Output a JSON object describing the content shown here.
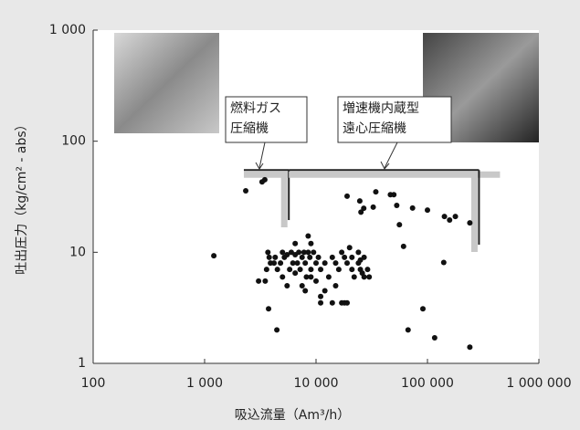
{
  "chart_data": {
    "type": "scatter",
    "xlabel": "吸込流量（Am³/h）",
    "ylabel": "吐出圧力（kg/cm² - abs）",
    "xlog": true,
    "ylog": true,
    "xlim": [
      100,
      1000000
    ],
    "ylim": [
      1,
      1000
    ],
    "xticks": [
      100,
      {
        "value": 1000,
        "label": "1 000"
      },
      {
        "value": 10000,
        "label": "10 000"
      },
      {
        "value": 100000,
        "label": "100 000"
      },
      {
        "value": 1000000,
        "label": "1 000 000"
      }
    ],
    "yticks": [
      1,
      10,
      100,
      {
        "value": 1000,
        "label": "1 000"
      }
    ],
    "color": "#111111",
    "x": [
      2340,
      3280,
      3470,
      1210,
      3050,
      3750,
      4450,
      3700,
      3800,
      3900,
      3600,
      4200,
      4500,
      4800,
      5000,
      5200,
      5500,
      5800,
      6000,
      6200,
      6500,
      6800,
      7000,
      7200,
      7500,
      7800,
      8000,
      8200,
      8500,
      8800,
      9000,
      9500,
      10000,
      10500,
      11000,
      12000,
      13000,
      14000,
      15000,
      16000,
      17000,
      18000,
      19000,
      20000,
      21000,
      22000,
      24000,
      25000,
      26000,
      27000,
      29000,
      30000,
      5000,
      5500,
      6500,
      7500,
      8000,
      9000,
      10000,
      11000,
      12000,
      14000,
      15000,
      17000,
      18000,
      9000,
      11000,
      19000,
      4300,
      6500,
      8500,
      21000,
      24000,
      25000,
      27000,
      3500,
      19000,
      24700,
      32600,
      34400,
      46500,
      49900,
      26800,
      25300,
      53000,
      73500,
      100000,
      142000,
      158000,
      178000,
      240000,
      56000,
      61000,
      140000,
      91000,
      67000,
      116000,
      240000
    ],
    "values": [
      35.8,
      43,
      45,
      9.3,
      5.5,
      3.1,
      2.0,
      10,
      9,
      8,
      7,
      8,
      7,
      8,
      10,
      9,
      9.5,
      7,
      10,
      8,
      9.5,
      8,
      10,
      7,
      9,
      10,
      8,
      6,
      10,
      9,
      7,
      10,
      8,
      9,
      7,
      8,
      6,
      9,
      8,
      7,
      10,
      9,
      8,
      11,
      7,
      6,
      8,
      7,
      6.5,
      6,
      7,
      6,
      6,
      5,
      6.5,
      5,
      4.5,
      6,
      5.5,
      4,
      4.5,
      3.5,
      5,
      3.5,
      3.5,
      12,
      3.5,
      3.5,
      9,
      12,
      14,
      9,
      10,
      8.5,
      9,
      5.5,
      32,
      29,
      25.5,
      35,
      33,
      33,
      24.9,
      23,
      26.4,
      25,
      24,
      21,
      19.5,
      21,
      18.4,
      17.7,
      11.3,
      8.1,
      3.1,
      2.0,
      1.7,
      1.4
    ],
    "annotations": [
      {
        "lines": [
          "燃料ガス",
          "圧縮機"
        ],
        "xrange": [
          2250,
          5700
        ],
        "yrange": [
          19.5,
          55
        ]
      },
      {
        "lines": [
          "増速機内蔵型",
          "遠心圧縮機"
        ],
        "xrange": [
          5700,
          290000
        ],
        "yrange": [
          11.7,
          55
        ]
      }
    ]
  }
}
